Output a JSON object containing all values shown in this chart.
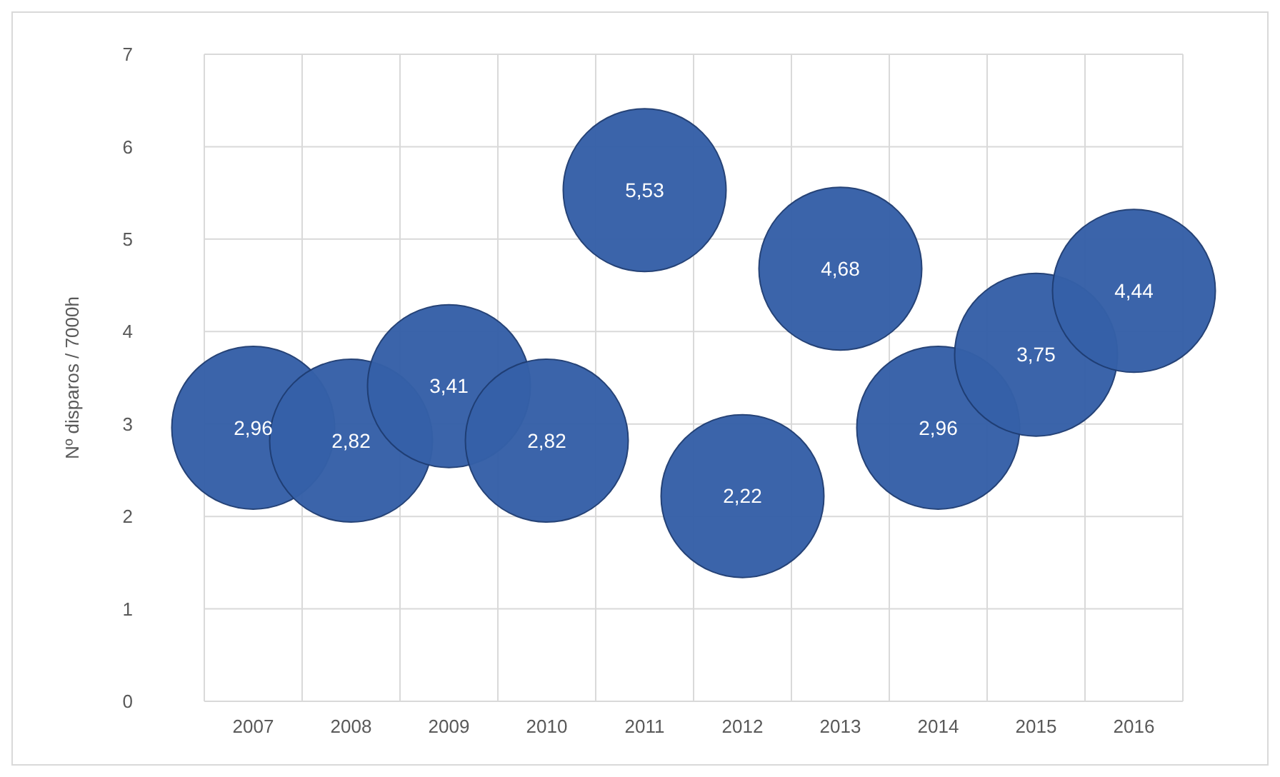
{
  "chart_data": {
    "type": "bubble",
    "ylabel": "Nº disparos / 7000h",
    "categories": [
      "2007",
      "2008",
      "2009",
      "2010",
      "2011",
      "2012",
      "2013",
      "2014",
      "2015",
      "2016"
    ],
    "values": [
      2.96,
      2.82,
      3.41,
      2.82,
      5.53,
      2.22,
      4.68,
      2.96,
      3.75,
      4.44
    ],
    "value_labels": [
      "2,96",
      "2,82",
      "3,41",
      "2,82",
      "5,53",
      "2,22",
      "4,68",
      "2,96",
      "3,75",
      "4,44"
    ],
    "sizes": [
      1,
      1,
      1,
      1,
      1,
      1,
      1,
      1,
      1,
      1
    ],
    "color": "#3560a8",
    "ylim": [
      0,
      7
    ],
    "yticks": [
      0,
      1,
      2,
      3,
      4,
      5,
      6,
      7
    ],
    "grid": true
  }
}
